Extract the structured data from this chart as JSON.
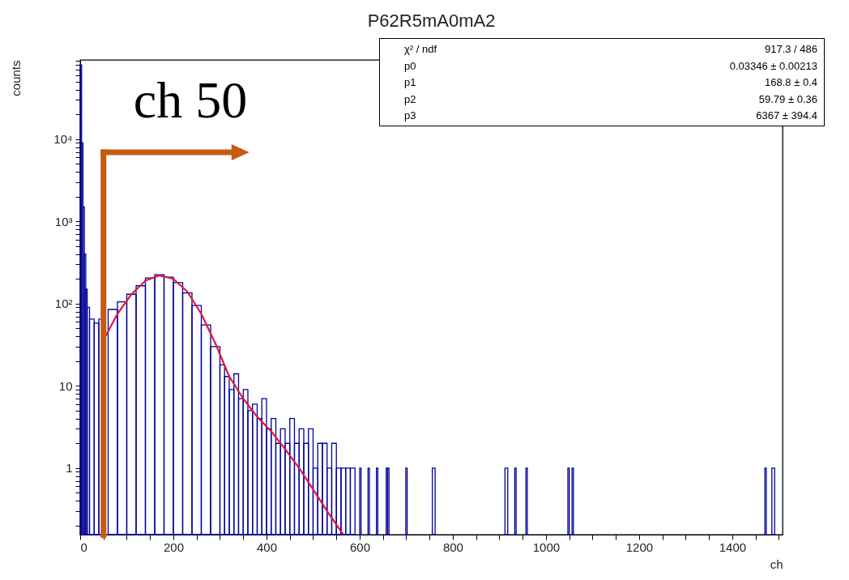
{
  "chart_data": {
    "type": "histogram",
    "title": "P62R5mA0mA2",
    "xlabel": "ch",
    "ylabel": "counts",
    "log": true,
    "xlim": [
      0,
      1508
    ],
    "xticks": [
      0,
      {
        "value": 50,
        "label": null
      },
      {
        "value": 100,
        "label": null
      },
      {
        "value": 150,
        "label": null
      },
      200,
      {
        "value": 250,
        "label": null
      },
      {
        "value": 300,
        "label": null
      },
      {
        "value": 350,
        "label": null
      },
      400,
      {
        "value": 450,
        "label": null
      },
      {
        "value": 500,
        "label": null
      },
      {
        "value": 550,
        "label": null
      },
      600,
      {
        "value": 650,
        "label": null
      },
      {
        "value": 700,
        "label": null
      },
      {
        "value": 750,
        "label": null
      },
      800,
      {
        "value": 850,
        "label": null
      },
      {
        "value": 900,
        "label": null
      },
      {
        "value": 950,
        "label": null
      },
      1000,
      {
        "value": 1050,
        "label": null
      },
      {
        "value": 1100,
        "label": null
      },
      {
        "value": 1150,
        "label": null
      },
      1200,
      {
        "value": 1250,
        "label": null
      },
      {
        "value": 1300,
        "label": null
      },
      {
        "value": 1350,
        "label": null
      },
      1400,
      {
        "value": 1450,
        "label": null
      },
      {
        "value": 1500,
        "label": null
      }
    ],
    "ylim": [
      0.155,
      92000
    ],
    "yticks": [
      {
        "value": 0.2,
        "label": null
      },
      {
        "value": 0.3,
        "label": null
      },
      {
        "value": 0.4,
        "label": null
      },
      {
        "value": 0.5,
        "label": null
      },
      {
        "value": 0.6,
        "label": null
      },
      {
        "value": 0.7,
        "label": null
      },
      {
        "value": 0.8,
        "label": null
      },
      {
        "value": 0.9,
        "label": null
      },
      1,
      {
        "value": 2,
        "label": null
      },
      {
        "value": 3,
        "label": null
      },
      {
        "value": 4,
        "label": null
      },
      {
        "value": 5,
        "label": null
      },
      {
        "value": 6,
        "label": null
      },
      {
        "value": 7,
        "label": null
      },
      {
        "value": 8,
        "label": null
      },
      {
        "value": 9,
        "label": null
      },
      10,
      {
        "value": 20,
        "label": null
      },
      {
        "value": 30,
        "label": null
      },
      {
        "value": 40,
        "label": null
      },
      {
        "value": 50,
        "label": null
      },
      {
        "value": 60,
        "label": null
      },
      {
        "value": 70,
        "label": null
      },
      {
        "value": 80,
        "label": null
      },
      {
        "value": 90,
        "label": null
      },
      {
        "value": 100,
        "label": "10²"
      },
      {
        "value": 200,
        "label": null
      },
      {
        "value": 300,
        "label": null
      },
      {
        "value": 400,
        "label": null
      },
      {
        "value": 500,
        "label": null
      },
      {
        "value": 600,
        "label": null
      },
      {
        "value": 700,
        "label": null
      },
      {
        "value": 800,
        "label": null
      },
      {
        "value": 900,
        "label": null
      },
      {
        "value": 1000,
        "label": "10³"
      },
      {
        "value": 2000,
        "label": null
      },
      {
        "value": 3000,
        "label": null
      },
      {
        "value": 4000,
        "label": null
      },
      {
        "value": 5000,
        "label": null
      },
      {
        "value": 6000,
        "label": null
      },
      {
        "value": 7000,
        "label": null
      },
      {
        "value": 8000,
        "label": null
      },
      {
        "value": 9000,
        "label": null
      },
      {
        "value": 10000,
        "label": "10⁴"
      },
      {
        "value": 20000,
        "label": null
      },
      {
        "value": 30000,
        "label": null
      },
      {
        "value": 40000,
        "label": null
      },
      {
        "value": 50000,
        "label": null
      },
      {
        "value": 60000,
        "label": null
      },
      {
        "value": 70000,
        "label": null
      },
      {
        "value": 80000,
        "label": null
      },
      {
        "value": 90000,
        "label": null
      }
    ],
    "series": [
      {
        "color": "#000099",
        "bins": [
          0,
          3,
          6,
          9,
          12,
          15,
          20,
          30,
          40,
          50,
          60,
          80,
          100,
          120,
          140,
          160,
          180,
          200,
          220,
          240,
          260,
          280,
          300,
          310,
          320,
          330,
          340,
          350,
          360,
          370,
          380,
          390,
          400,
          410,
          420,
          430,
          440,
          450,
          460,
          470,
          480,
          490,
          500,
          510,
          520,
          530,
          540,
          550,
          560,
          570,
          580,
          590,
          600,
          603,
          618,
          621,
          636,
          639,
          657,
          660,
          663,
          699,
          702,
          756,
          762,
          912,
          918,
          933,
          936,
          957,
          960,
          1047,
          1050,
          1056,
          1059,
          1470,
          1473,
          1485,
          1491
        ],
        "values": [
          80000,
          9000,
          1500,
          400,
          150,
          90,
          65,
          58,
          65,
          null,
          85,
          105,
          130,
          165,
          205,
          225,
          210,
          180,
          135,
          95,
          55,
          30,
          18,
          13,
          9,
          14,
          7,
          9,
          5,
          6,
          4,
          7,
          3,
          4,
          2,
          3,
          2,
          4,
          2,
          3,
          2,
          3,
          1,
          2,
          2,
          1,
          2,
          1,
          1,
          1,
          1,
          null,
          1,
          null,
          1,
          null,
          1,
          null,
          1,
          1,
          null,
          1,
          null,
          1,
          null,
          1,
          null,
          1,
          null,
          1,
          null,
          1,
          null,
          1,
          null,
          1,
          null,
          1
        ]
      },
      {
        "type": "line",
        "color": "#dd1a3c",
        "x": [
          50,
          80,
          110,
          140,
          170,
          200,
          230,
          260,
          290,
          320,
          350,
          380,
          410,
          440,
          470,
          500,
          530,
          565
        ],
        "values": [
          36,
          75,
          130,
          190,
          220,
          200,
          140,
          75,
          33,
          13,
          7,
          4.2,
          2.8,
          1.7,
          1.0,
          0.55,
          0.3,
          0.155
        ]
      }
    ],
    "ref_lines": [
      {
        "axis": "x",
        "value": 50,
        "label": "ch 50",
        "color": "#c55a11"
      }
    ],
    "annotations": [
      "χ² / ndf",
      "917.3 / 486",
      "p0",
      "0.03346 ± 0.00213",
      "p1",
      "168.8 ± 0.4",
      "p2",
      "59.79 ± 0.36",
      "p3",
      "6367 ± 394.4"
    ]
  }
}
